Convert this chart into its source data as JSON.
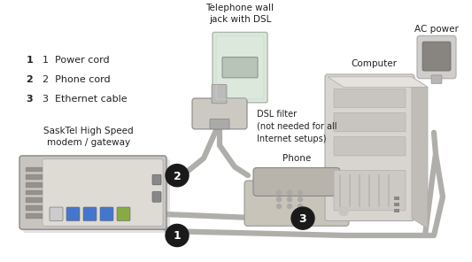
{
  "background_color": "#ffffff",
  "labels": {
    "item1": "1  Power cord",
    "item2": "2  Phone cord",
    "item3": "3  Ethernet cable",
    "gateway_label": "SaskTel High Speed\nmodem / gateway",
    "wall_jack_label": "Telephone wall\njack with DSL",
    "dsl_filter_label": "DSL filter\n(not needed for all\nInternet setups)",
    "phone_label": "Phone",
    "computer_label": "Computer",
    "ac_power_label": "AC power"
  },
  "colors": {
    "cable_gray": "#b0aeab",
    "badge_fill": "#1a1a1a",
    "badge_text": "#ffffff",
    "text_color": "#222222",
    "gateway_body": "#c8c5c0",
    "gateway_front": "#dedad4",
    "gateway_dark": "#8a8680",
    "wall_plate": "#dce8dc",
    "wall_plate_edge": "#aab8aa",
    "dsl_body": "#ccc9c2",
    "phone_body": "#c8c4ba",
    "computer_body": "#d8d5d0",
    "ac_body": "#c0bebb",
    "ac_dark": "#888480"
  }
}
